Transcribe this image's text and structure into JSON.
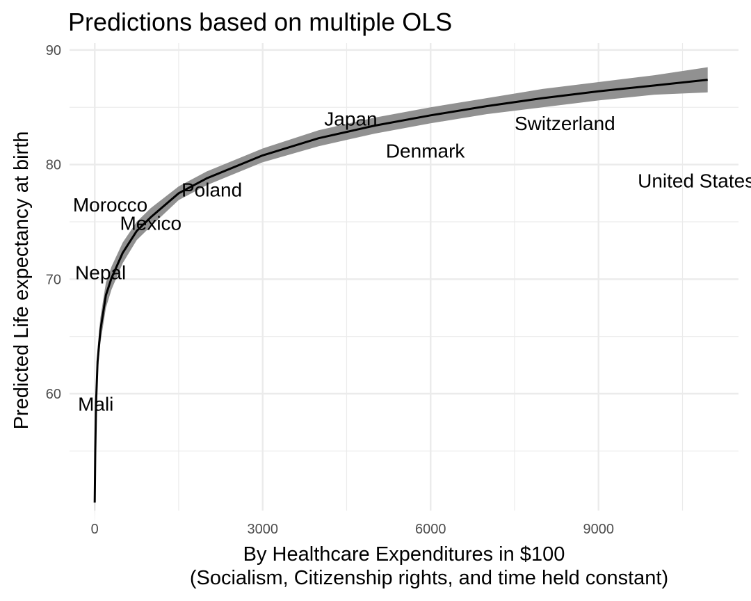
{
  "chart_data": {
    "type": "line",
    "title": "Predictions based on multiple OLS",
    "xlabel": "By Healthcare Expenditures in $100",
    "xlabel_line2": "(Socialism, Citizenship rights, and time held constant)",
    "ylabel": "Predicted Life expectancy at birth",
    "xlim": [
      -450,
      11500
    ],
    "ylim": [
      49.8,
      90.6
    ],
    "x_ticks": [
      0,
      3000,
      6000,
      9000
    ],
    "x_minor_ticks": [
      1500,
      4500,
      7500,
      10500
    ],
    "y_ticks": [
      60,
      70,
      80,
      90
    ],
    "y_minor_ticks": [
      55,
      65,
      75,
      85
    ],
    "x_tick_labels": [
      "0",
      "3000",
      "6000",
      "9000"
    ],
    "y_tick_labels": [
      "60",
      "70",
      "80",
      "90"
    ],
    "grid": true,
    "legend": "none",
    "colors": {
      "line": "#000000",
      "ribbon": "#919191",
      "grid": "#ebebeb",
      "tick_text": "#4d4d4d"
    },
    "series": [
      {
        "x": [
          0,
          10,
          25,
          50,
          100,
          200,
          300,
          500,
          750,
          1000,
          1500,
          2000,
          3000,
          4000,
          5000,
          6000,
          7000,
          8000,
          9000,
          10000,
          10950
        ],
        "y": [
          50.5,
          55.0,
          59.3,
          62.8,
          65.5,
          68.6,
          70.1,
          72.3,
          74.2,
          75.4,
          77.5,
          78.8,
          80.8,
          82.3,
          83.4,
          84.3,
          85.1,
          85.8,
          86.4,
          86.9,
          87.4
        ],
        "lower": [
          48.5,
          53.8,
          58.2,
          61.7,
          64.4,
          67.5,
          69.1,
          71.4,
          73.4,
          74.6,
          76.9,
          78.2,
          80.2,
          81.6,
          82.7,
          83.6,
          84.4,
          85.0,
          85.6,
          86.1,
          86.3
        ],
        "upper": [
          52.5,
          56.2,
          60.4,
          63.9,
          66.6,
          69.7,
          71.1,
          73.2,
          75.0,
          76.2,
          78.1,
          79.4,
          81.4,
          83.0,
          84.1,
          85.0,
          85.8,
          86.6,
          87.2,
          87.8,
          88.5
        ]
      }
    ],
    "annotations": [
      {
        "label": "Japan",
        "x": 4100,
        "y": 83.4
      },
      {
        "label": "Switzerland",
        "x": 7500,
        "y": 83.0
      },
      {
        "label": "Denmark",
        "x": 5200,
        "y": 80.6
      },
      {
        "label": "United States",
        "x": 9700,
        "y": 78.0
      },
      {
        "label": "Poland",
        "x": 1550,
        "y": 77.2
      },
      {
        "label": "Morocco",
        "x": -390,
        "y": 75.9
      },
      {
        "label": "Mexico",
        "x": 450,
        "y": 74.3
      },
      {
        "label": "Nepal",
        "x": -350,
        "y": 70.0
      },
      {
        "label": "Mali",
        "x": -300,
        "y": 58.5
      }
    ]
  }
}
